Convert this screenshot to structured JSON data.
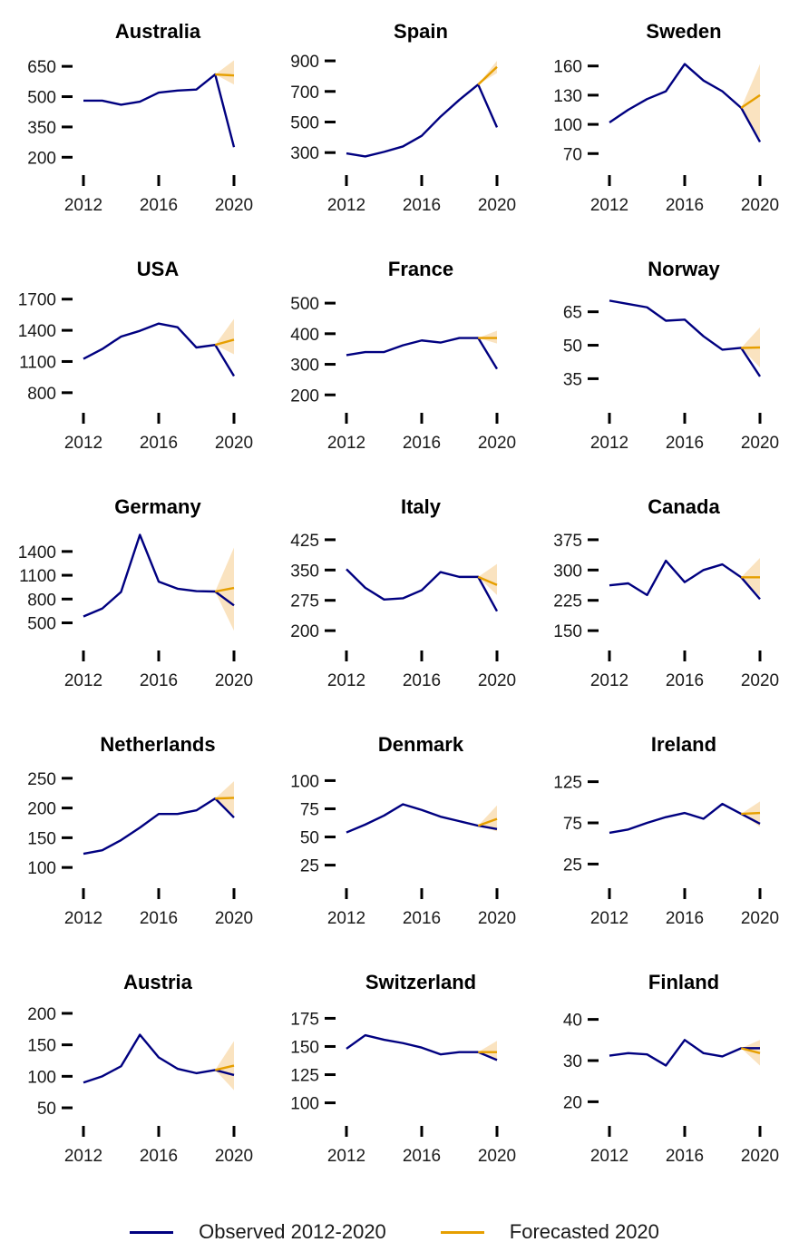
{
  "legend": {
    "observed_label": "Observed 2012-2020",
    "forecast_label": "Forecasted 2020"
  },
  "colors": {
    "observed": "#000080",
    "forecast": "#E69F00",
    "band": "#FAE3C0"
  },
  "chart_data": [
    {
      "type": "line",
      "title": "Australia",
      "xticks": [
        2012,
        2016,
        2020
      ],
      "yticks": [
        200,
        350,
        500,
        650
      ],
      "ylim": [
        170,
        700
      ],
      "x": [
        2012,
        2013,
        2014,
        2015,
        2016,
        2017,
        2018,
        2019,
        2020
      ],
      "observed": [
        480,
        480,
        460,
        475,
        520,
        530,
        535,
        610,
        250
      ],
      "forecast": {
        "x0": 2019,
        "y0": 610,
        "y": 605,
        "lo": 560,
        "hi": 680
      }
    },
    {
      "type": "line",
      "title": "Spain",
      "xticks": [
        2012,
        2016,
        2020
      ],
      "yticks": [
        300,
        500,
        700,
        900
      ],
      "ylim": [
        230,
        930
      ],
      "x": [
        2012,
        2013,
        2014,
        2015,
        2016,
        2017,
        2018,
        2019,
        2020
      ],
      "observed": [
        295,
        275,
        305,
        340,
        410,
        535,
        645,
        745,
        465
      ],
      "forecast": {
        "x0": 2019,
        "y0": 745,
        "y": 860,
        "lo": 820,
        "hi": 900
      }
    },
    {
      "type": "line",
      "title": "Sweden",
      "xticks": [
        2012,
        2016,
        2020
      ],
      "yticks": [
        70,
        100,
        130,
        160
      ],
      "ylim": [
        60,
        170
      ],
      "x": [
        2012,
        2013,
        2014,
        2015,
        2016,
        2017,
        2018,
        2019,
        2020
      ],
      "observed": [
        102,
        115,
        126,
        134,
        162,
        145,
        134,
        117,
        82
      ],
      "forecast": {
        "x0": 2019,
        "y0": 117,
        "y": 130,
        "lo": 85,
        "hi": 162
      }
    },
    {
      "type": "line",
      "title": "USA",
      "xticks": [
        2012,
        2016,
        2020
      ],
      "yticks": [
        800,
        1100,
        1400,
        1700
      ],
      "ylim": [
        720,
        1750
      ],
      "x": [
        2012,
        2013,
        2014,
        2015,
        2016,
        2017,
        2018,
        2019,
        2020
      ],
      "observed": [
        1125,
        1220,
        1340,
        1395,
        1465,
        1430,
        1235,
        1260,
        960
      ],
      "forecast": {
        "x0": 2019,
        "y0": 1260,
        "y": 1310,
        "lo": 1170,
        "hi": 1510
      }
    },
    {
      "type": "line",
      "title": "France",
      "xticks": [
        2012,
        2016,
        2020
      ],
      "yticks": [
        200,
        300,
        400,
        500
      ],
      "ylim": [
        180,
        530
      ],
      "x": [
        2012,
        2013,
        2014,
        2015,
        2016,
        2017,
        2018,
        2019,
        2020
      ],
      "observed": [
        330,
        340,
        340,
        362,
        378,
        371,
        386,
        386,
        285
      ],
      "forecast": {
        "x0": 2019,
        "y0": 386,
        "y": 386,
        "lo": 368,
        "hi": 410
      }
    },
    {
      "type": "line",
      "title": "Norway",
      "xticks": [
        2012,
        2016,
        2020
      ],
      "yticks": [
        35,
        50,
        65
      ],
      "ylim": [
        25,
        73
      ],
      "x": [
        2012,
        2013,
        2014,
        2015,
        2016,
        2017,
        2018,
        2019,
        2020
      ],
      "observed": [
        70,
        68.5,
        67,
        61,
        61.5,
        54,
        48,
        48.8,
        36
      ],
      "forecast": {
        "x0": 2019,
        "y0": 48.8,
        "y": 49,
        "lo": 40,
        "hi": 58
      }
    },
    {
      "type": "line",
      "title": "Germany",
      "xticks": [
        2012,
        2016,
        2020
      ],
      "yticks": [
        500,
        800,
        1100,
        1400
      ],
      "ylim": [
        300,
        1650
      ],
      "x": [
        2012,
        2013,
        2014,
        2015,
        2016,
        2017,
        2018,
        2019,
        2020
      ],
      "observed": [
        580,
        680,
        890,
        1610,
        1020,
        930,
        900,
        895,
        720
      ],
      "forecast": {
        "x0": 2019,
        "y0": 895,
        "y": 940,
        "lo": 400,
        "hi": 1450
      }
    },
    {
      "type": "line",
      "title": "Italy",
      "xticks": [
        2012,
        2016,
        2020
      ],
      "yticks": [
        200,
        275,
        350,
        425
      ],
      "ylim": [
        180,
        445
      ],
      "x": [
        2012,
        2013,
        2014,
        2015,
        2016,
        2017,
        2018,
        2019,
        2020
      ],
      "observed": [
        352,
        306,
        277,
        280,
        300,
        345,
        333,
        333,
        248
      ],
      "forecast": {
        "x0": 2019,
        "y0": 333,
        "y": 313,
        "lo": 288,
        "hi": 365
      }
    },
    {
      "type": "line",
      "title": "Canada",
      "xticks": [
        2012,
        2016,
        2020
      ],
      "yticks": [
        150,
        225,
        300,
        375
      ],
      "ylim": [
        130,
        395
      ],
      "x": [
        2012,
        2013,
        2014,
        2015,
        2016,
        2017,
        2018,
        2019,
        2020
      ],
      "observed": [
        262,
        267,
        238,
        323,
        270,
        300,
        314,
        282,
        228
      ],
      "forecast": {
        "x0": 2019,
        "y0": 282,
        "y": 282,
        "lo": 235,
        "hi": 330
      }
    },
    {
      "type": "line",
      "title": "Netherlands",
      "xticks": [
        2012,
        2016,
        2020
      ],
      "yticks": [
        100,
        150,
        200,
        250
      ],
      "ylim": [
        85,
        265
      ],
      "x": [
        2012,
        2013,
        2014,
        2015,
        2016,
        2017,
        2018,
        2019,
        2020
      ],
      "observed": [
        123,
        129,
        146,
        167,
        190,
        190,
        196,
        216,
        184
      ],
      "forecast": {
        "x0": 2019,
        "y0": 216,
        "y": 217,
        "lo": 188,
        "hi": 245
      }
    },
    {
      "type": "line",
      "title": "Denmark",
      "xticks": [
        2012,
        2016,
        2020
      ],
      "yticks": [
        25,
        50,
        75,
        100
      ],
      "ylim": [
        15,
        110
      ],
      "x": [
        2012,
        2013,
        2014,
        2015,
        2016,
        2017,
        2018,
        2019,
        2020
      ],
      "observed": [
        54,
        61,
        69,
        79,
        74,
        68,
        64,
        60,
        57
      ],
      "forecast": {
        "x0": 2019,
        "y0": 60,
        "y": 66,
        "lo": 55,
        "hi": 78
      }
    },
    {
      "type": "line",
      "title": "Ireland",
      "xticks": [
        2012,
        2016,
        2020
      ],
      "yticks": [
        25,
        75,
        125
      ],
      "ylim": [
        10,
        140
      ],
      "x": [
        2012,
        2013,
        2014,
        2015,
        2016,
        2017,
        2018,
        2019,
        2020
      ],
      "observed": [
        63,
        67,
        75,
        82,
        87,
        80,
        98,
        86,
        74
      ],
      "forecast": {
        "x0": 2019,
        "y0": 86,
        "y": 87,
        "lo": 70,
        "hi": 101
      }
    },
    {
      "type": "line",
      "title": "Austria",
      "xticks": [
        2012,
        2016,
        2020
      ],
      "yticks": [
        50,
        100,
        150,
        200
      ],
      "ylim": [
        40,
        210
      ],
      "x": [
        2012,
        2013,
        2014,
        2015,
        2016,
        2017,
        2018,
        2019,
        2020
      ],
      "observed": [
        90,
        100,
        116,
        166,
        130,
        112,
        105,
        110,
        102
      ],
      "forecast": {
        "x0": 2019,
        "y0": 110,
        "y": 117,
        "lo": 78,
        "hi": 156
      }
    },
    {
      "type": "line",
      "title": "Switzerland",
      "xticks": [
        2012,
        2016,
        2020
      ],
      "yticks": [
        100,
        125,
        150,
        175
      ],
      "ylim": [
        90,
        185
      ],
      "x": [
        2012,
        2013,
        2014,
        2015,
        2016,
        2017,
        2018,
        2019,
        2020
      ],
      "observed": [
        148,
        160,
        156,
        153,
        149,
        143,
        145,
        145,
        138
      ],
      "forecast": {
        "x0": 2019,
        "y0": 145,
        "y": 145,
        "lo": 137,
        "hi": 155
      }
    },
    {
      "type": "line",
      "title": "Finland",
      "xticks": [
        2012,
        2016,
        2020
      ],
      "yticks": [
        20,
        30,
        40
      ],
      "ylim": [
        17,
        43
      ],
      "x": [
        2012,
        2013,
        2014,
        2015,
        2016,
        2017,
        2018,
        2019,
        2020
      ],
      "observed": [
        31.2,
        31.8,
        31.5,
        28.8,
        35,
        31.8,
        31,
        33,
        33
      ],
      "forecast": {
        "x0": 2019,
        "y0": 33,
        "y": 31.8,
        "lo": 28.8,
        "hi": 35
      }
    }
  ]
}
